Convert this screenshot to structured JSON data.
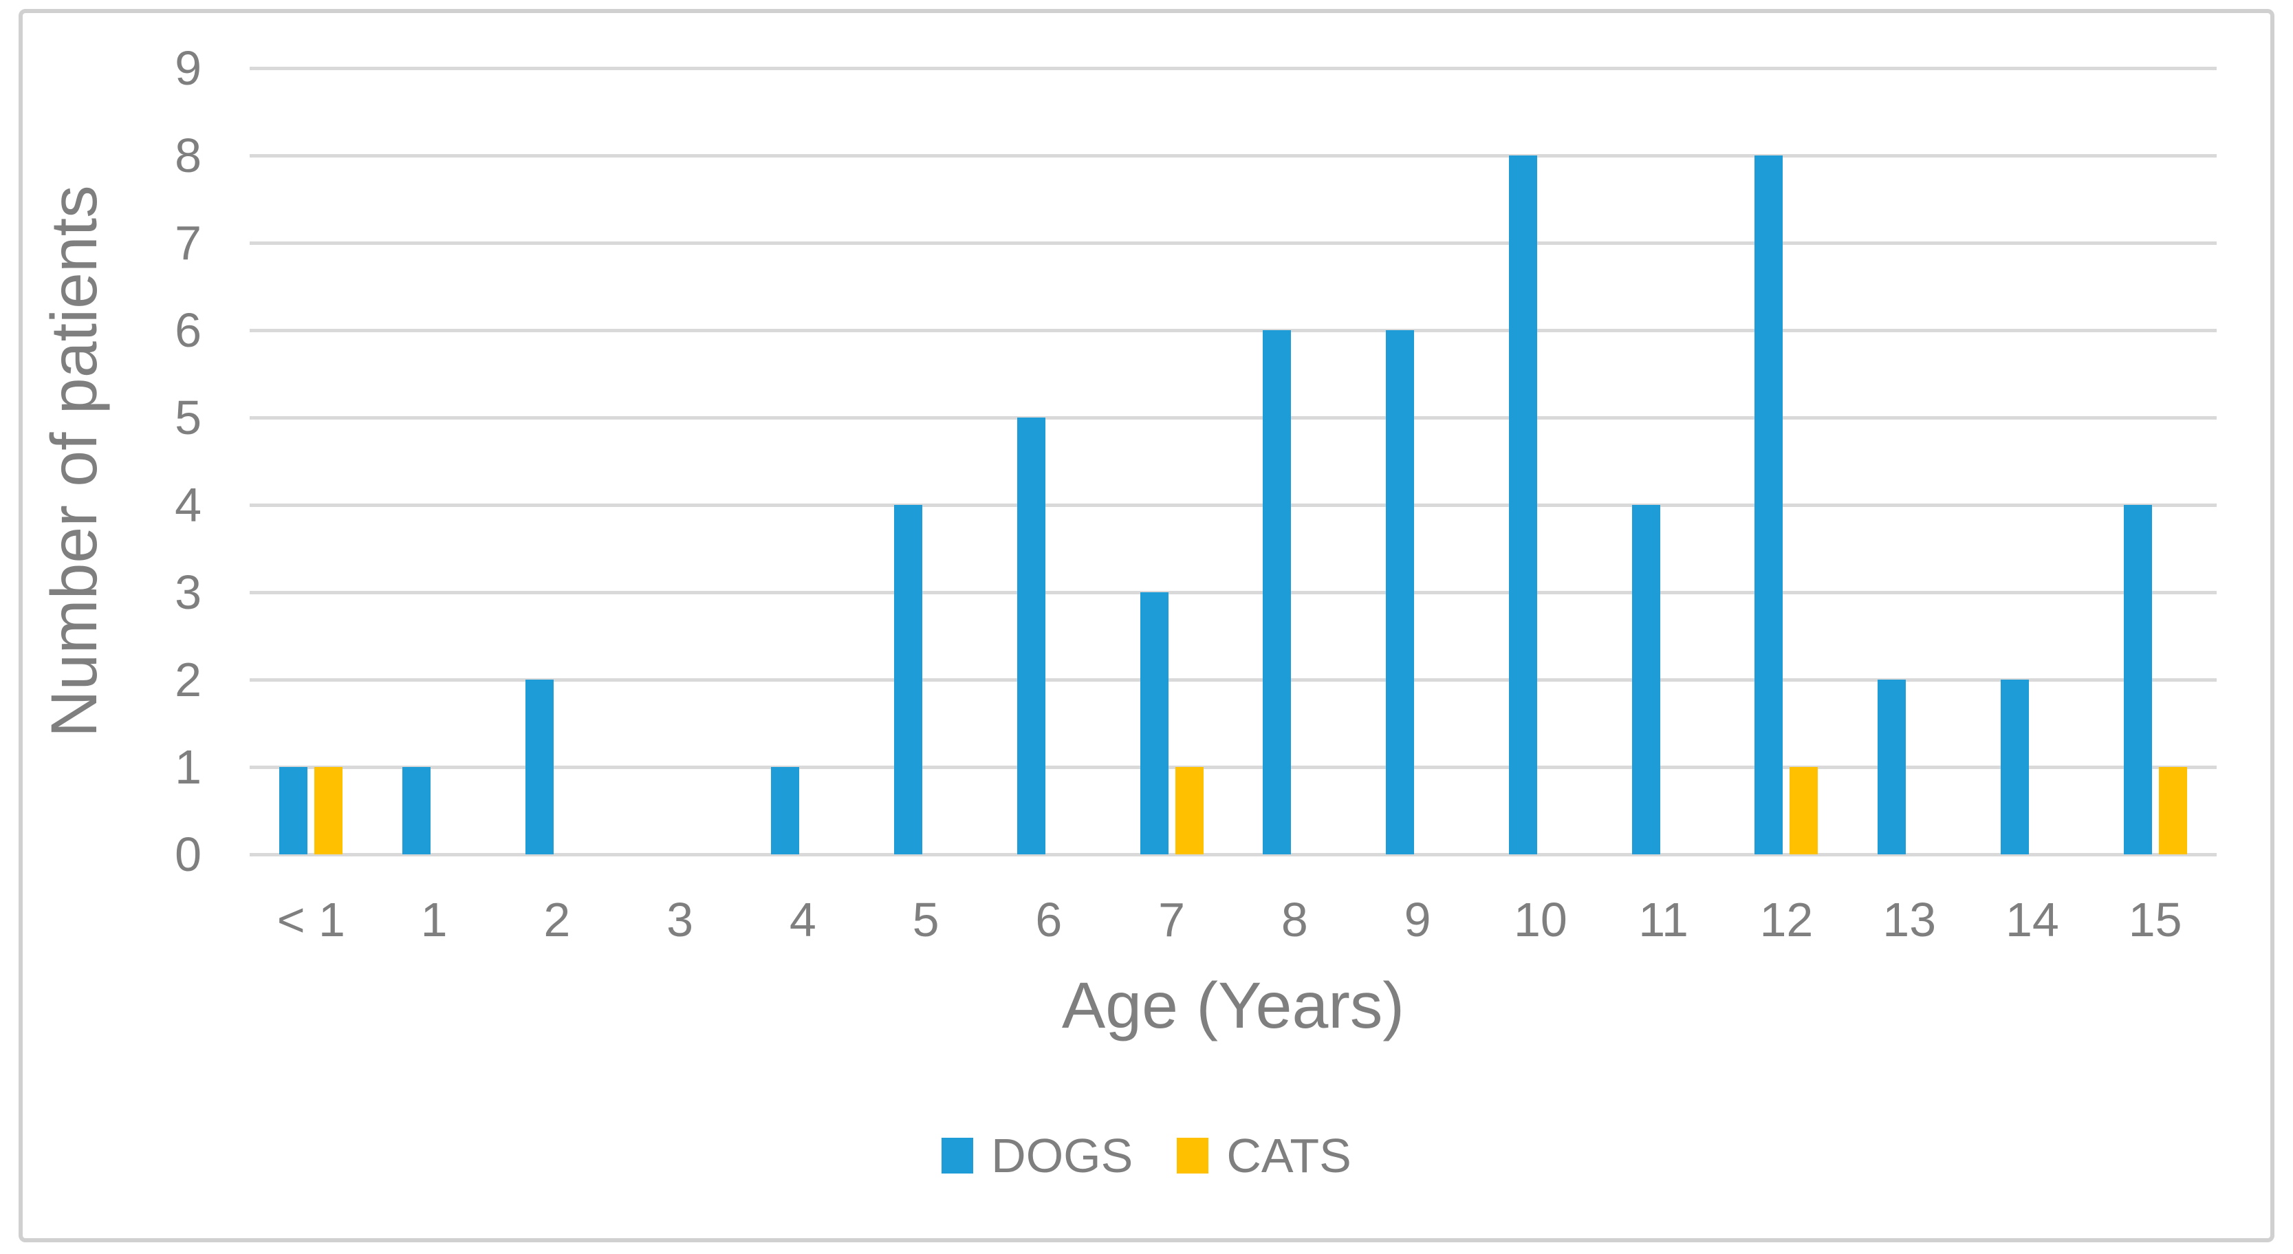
{
  "figure": {
    "background": "#FFFFFF",
    "border_color": "#D0D0D0"
  },
  "chart_data": {
    "type": "bar",
    "title": "",
    "categories": [
      "< 1",
      "1",
      "2",
      "3",
      "4",
      "5",
      "6",
      "7",
      "8",
      "9",
      "10",
      "11",
      "12",
      "13",
      "14",
      "15"
    ],
    "series": [
      {
        "name": "DOGS",
        "color": "#1E9CD8",
        "values": [
          1,
          1,
          2,
          0,
          1,
          4,
          5,
          3,
          6,
          6,
          8,
          4,
          8,
          2,
          2,
          4
        ]
      },
      {
        "name": "CATS",
        "color": "#FFC000",
        "values": [
          1,
          0,
          0,
          0,
          0,
          0,
          0,
          1,
          0,
          0,
          0,
          0,
          1,
          0,
          0,
          1
        ]
      }
    ],
    "xlabel": "Age (Years)",
    "ylabel": "Number of patients",
    "ylim": [
      0,
      9
    ],
    "ytick_step": 1,
    "yticks": [
      0,
      1,
      2,
      3,
      4,
      5,
      6,
      7,
      8,
      9
    ],
    "grid": true,
    "legend_position": "bottom",
    "text_color": "#7F7F7F",
    "gridline_color": "#D9D9D9"
  }
}
